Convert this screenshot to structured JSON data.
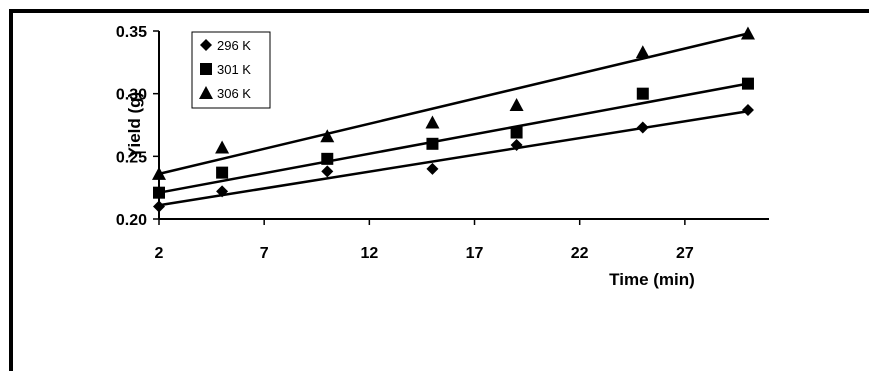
{
  "chart_data": {
    "type": "scatter",
    "title": "",
    "xlabel": "Time (min)",
    "ylabel": "Yield (g)",
    "xlim": [
      2,
      31
    ],
    "ylim": [
      0.2,
      0.35
    ],
    "xticks": [
      "2",
      "7",
      "12",
      "17",
      "22",
      "27"
    ],
    "yticks": [
      "0.20",
      "0.25",
      "0.30",
      "0.35"
    ],
    "legend_position": "top-left",
    "grid": false,
    "series": [
      {
        "name": "296 K",
        "marker": "diamond",
        "color": "#000000",
        "x": [
          2,
          5,
          10,
          15,
          19,
          25,
          30
        ],
        "y": [
          0.21,
          0.222,
          0.238,
          0.24,
          0.259,
          0.273,
          0.287
        ],
        "trend": [
          [
            2,
            0.211
          ],
          [
            30,
            0.286
          ]
        ]
      },
      {
        "name": "301 K",
        "marker": "square",
        "color": "#000000",
        "x": [
          2,
          5,
          10,
          15,
          19,
          25,
          30
        ],
        "y": [
          0.221,
          0.237,
          0.248,
          0.26,
          0.269,
          0.3,
          0.308
        ],
        "trend": [
          [
            2,
            0.221
          ],
          [
            30,
            0.308
          ]
        ]
      },
      {
        "name": "306 K",
        "marker": "triangle",
        "color": "#000000",
        "x": [
          2,
          5,
          10,
          15,
          19,
          25,
          30
        ],
        "y": [
          0.236,
          0.257,
          0.266,
          0.277,
          0.291,
          0.333,
          0.348
        ],
        "trend": [
          [
            2,
            0.236
          ],
          [
            30,
            0.348
          ]
        ]
      }
    ]
  }
}
